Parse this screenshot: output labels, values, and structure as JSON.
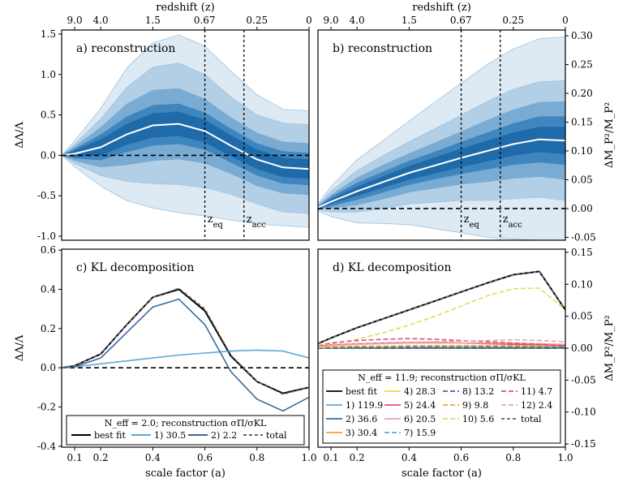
{
  "top_axis": {
    "label": "redshift (z)",
    "ticks": [
      "9.0",
      "4.0",
      "1.5",
      "0.67",
      "0.25",
      "0"
    ]
  },
  "bottom_axis": {
    "label": "scale factor (a)",
    "ticks": [
      "0.1",
      "0.2",
      "0.4",
      "0.6",
      "0.8",
      "1.0"
    ]
  },
  "chart_data": [
    {
      "id": "a",
      "type": "area",
      "title": "a) reconstruction",
      "ylabel": "ΔΛ/Λ",
      "xlim": [
        0.05,
        1.0
      ],
      "ylim": [
        -1.05,
        1.55
      ],
      "yticks": [
        "-1.0",
        "-0.5",
        "0.0",
        "0.5",
        "1.0",
        "1.5"
      ],
      "x": [
        0.05,
        0.1,
        0.2,
        0.3,
        0.4,
        0.5,
        0.6,
        0.7,
        0.8,
        0.9,
        1.0
      ],
      "median": [
        0,
        0.02,
        0.1,
        0.26,
        0.37,
        0.39,
        0.3,
        0.12,
        -0.05,
        -0.15,
        -0.17
      ],
      "band_half_widths": [
        [
          0,
          0.04,
          0.1,
          0.13,
          0.15,
          0.15,
          0.14,
          0.13,
          0.12,
          0.12,
          0.12
        ],
        [
          0,
          0.06,
          0.16,
          0.22,
          0.25,
          0.25,
          0.23,
          0.21,
          0.2,
          0.2,
          0.2
        ],
        [
          0,
          0.09,
          0.25,
          0.38,
          0.44,
          0.44,
          0.4,
          0.35,
          0.33,
          0.32,
          0.32
        ],
        [
          0,
          0.12,
          0.35,
          0.58,
          0.72,
          0.75,
          0.7,
          0.6,
          0.55,
          0.55,
          0.55
        ],
        [
          0,
          0.16,
          0.48,
          0.82,
          1.02,
          1.1,
          1.05,
          0.92,
          0.8,
          0.72,
          0.72
        ]
      ],
      "annotations": [
        {
          "label": "z_eq",
          "a": 0.6
        },
        {
          "label": "z_acc",
          "a": 0.75
        }
      ]
    },
    {
      "id": "b",
      "type": "area",
      "title": "b) reconstruction",
      "ylabel": "ΔM_P²/M_P²",
      "xlim": [
        0.05,
        1.0
      ],
      "ylim": [
        -0.055,
        0.31
      ],
      "yticks": [
        "-0.05",
        "0.00",
        "0.05",
        "0.10",
        "0.15",
        "0.20",
        "0.25",
        "0.30"
      ],
      "x": [
        0.05,
        0.1,
        0.2,
        0.3,
        0.4,
        0.5,
        0.6,
        0.7,
        0.8,
        0.9,
        1.0
      ],
      "median": [
        0.002,
        0.012,
        0.03,
        0.046,
        0.062,
        0.075,
        0.088,
        0.1,
        0.112,
        0.12,
        0.118
      ],
      "band_half_widths": [
        [
          0.001,
          0.004,
          0.008,
          0.01,
          0.012,
          0.014,
          0.016,
          0.018,
          0.02,
          0.022,
          0.024
        ],
        [
          0.002,
          0.008,
          0.015,
          0.018,
          0.021,
          0.024,
          0.028,
          0.032,
          0.036,
          0.04,
          0.042
        ],
        [
          0.003,
          0.012,
          0.024,
          0.03,
          0.034,
          0.04,
          0.046,
          0.054,
          0.06,
          0.065,
          0.068
        ],
        [
          0.004,
          0.018,
          0.036,
          0.046,
          0.054,
          0.064,
          0.074,
          0.086,
          0.095,
          0.1,
          0.104
        ],
        [
          0.006,
          0.026,
          0.055,
          0.072,
          0.09,
          0.11,
          0.13,
          0.15,
          0.165,
          0.175,
          0.18
        ]
      ],
      "annotations": [
        {
          "label": "z_eq",
          "a": 0.6
        },
        {
          "label": "z_acc",
          "a": 0.75
        }
      ]
    },
    {
      "id": "c",
      "type": "line",
      "title": "c) KL decomposition",
      "ylabel": "ΔΛ/Λ",
      "xlim": [
        0.05,
        1.0
      ],
      "ylim": [
        -0.405,
        0.605
      ],
      "yticks": [
        "-0.4",
        "-0.2",
        "0.0",
        "0.2",
        "0.4",
        "0.6"
      ],
      "x": [
        0.05,
        0.1,
        0.2,
        0.3,
        0.4,
        0.5,
        0.6,
        0.7,
        0.8,
        0.9,
        1.0
      ],
      "legend_title": "N_eff = 2.0; reconstruction σΠ/σKL",
      "series": [
        {
          "name": "best fit",
          "color": "#000000",
          "dash": "",
          "values": [
            0,
            0.01,
            0.07,
            0.22,
            0.36,
            0.4,
            0.29,
            0.06,
            -0.07,
            -0.13,
            -0.1
          ]
        },
        {
          "name": "1) 30.5",
          "color": "#5fa8dc",
          "dash": "",
          "values": [
            0,
            0.005,
            0.02,
            0.035,
            0.05,
            0.065,
            0.075,
            0.085,
            0.09,
            0.085,
            0.05
          ]
        },
        {
          "name": "2) 2.2",
          "color": "#3a6a9c",
          "dash": "",
          "values": [
            0,
            0.005,
            0.05,
            0.18,
            0.31,
            0.35,
            0.22,
            -0.02,
            -0.16,
            -0.22,
            -0.15
          ]
        },
        {
          "name": "total",
          "color": "#666666",
          "dash": "4,3",
          "values": [
            0,
            0.01,
            0.07,
            0.22,
            0.36,
            0.405,
            0.3,
            0.065,
            -0.07,
            -0.135,
            -0.1
          ]
        }
      ]
    },
    {
      "id": "d",
      "type": "line",
      "title": "d) KL decomposition",
      "ylabel": "ΔM_P²/M_P²",
      "xlim": [
        0.05,
        1.0
      ],
      "ylim": [
        -0.155,
        0.155
      ],
      "yticks": [
        "-0.15",
        "-0.10",
        "-0.05",
        "0.00",
        "0.05",
        "0.10",
        "0.15"
      ],
      "x": [
        0.05,
        0.1,
        0.2,
        0.3,
        0.4,
        0.5,
        0.6,
        0.7,
        0.8,
        0.9,
        1.0
      ],
      "legend_title": "N_eff = 11.9; reconstruction σΠ/σKL",
      "series": [
        {
          "name": "best fit",
          "color": "#000000",
          "dash": "",
          "values": [
            0.007,
            0.016,
            0.032,
            0.046,
            0.06,
            0.074,
            0.088,
            0.102,
            0.115,
            0.12,
            0.06
          ]
        },
        {
          "name": "1) 119.9",
          "color": "#5fa8dc",
          "dash": "",
          "values": [
            0.001,
            0.001,
            0.001,
            0.001,
            0.001,
            0.001,
            0.001,
            0.001,
            0.001,
            0.001,
            0.001
          ]
        },
        {
          "name": "2) 36.6",
          "color": "#3a6a9c",
          "dash": "",
          "values": [
            0,
            0,
            0,
            0,
            0,
            0,
            0,
            0,
            0,
            0,
            0
          ]
        },
        {
          "name": "3) 30.4",
          "color": "#f0a030",
          "dash": "",
          "values": [
            0.001,
            0.001,
            0.002,
            0.002,
            0.002,
            0.002,
            0.002,
            0.002,
            0.002,
            0.002,
            0.002
          ]
        },
        {
          "name": "4) 28.3",
          "color": "#e8d85a",
          "dash": "",
          "values": [
            0.001,
            0.001,
            0.002,
            0.002,
            0.002,
            0.003,
            0.003,
            0.003,
            0.003,
            0.003,
            0.003
          ]
        },
        {
          "name": "5) 24.4",
          "color": "#e0506e",
          "dash": "",
          "values": [
            0.003,
            0.005,
            0.007,
            0.008,
            0.009,
            0.009,
            0.008,
            0.007,
            0.006,
            0.005,
            0.004
          ]
        },
        {
          "name": "6) 20.5",
          "color": "#e6a4b6",
          "dash": "",
          "values": [
            0.002,
            0.004,
            0.006,
            0.007,
            0.008,
            0.008,
            0.008,
            0.008,
            0.008,
            0.007,
            0.006
          ]
        },
        {
          "name": "7) 15.9",
          "color": "#5fa8dc",
          "dash": "6,3",
          "values": [
            0,
            0.001,
            0.001,
            0.001,
            0.002,
            0.002,
            0.002,
            0.002,
            0.002,
            0.002,
            0.002
          ]
        },
        {
          "name": "8) 13.2",
          "color": "#3a6a9c",
          "dash": "6,3",
          "values": [
            0,
            0,
            0.001,
            0.001,
            0.001,
            0.001,
            0.001,
            0.001,
            0.001,
            0.001,
            0.001
          ]
        },
        {
          "name": "9) 9.8",
          "color": "#f0a030",
          "dash": "6,3",
          "values": [
            0.001,
            0.002,
            0.003,
            0.003,
            0.004,
            0.004,
            0.004,
            0.004,
            0.004,
            0.004,
            0.004
          ]
        },
        {
          "name": "10) 5.6",
          "color": "#e8d85a",
          "dash": "6,3",
          "values": [
            0.002,
            0.006,
            0.014,
            0.024,
            0.036,
            0.05,
            0.066,
            0.082,
            0.093,
            0.094,
            0.06
          ]
        },
        {
          "name": "11) 4.7",
          "color": "#e0506e",
          "dash": "6,3",
          "values": [
            0.004,
            0.008,
            0.012,
            0.014,
            0.015,
            0.014,
            0.012,
            0.01,
            0.008,
            0.006,
            0.004
          ]
        },
        {
          "name": "12) 2.4",
          "color": "#e6a4b6",
          "dash": "6,3",
          "values": [
            0.003,
            0.005,
            0.007,
            0.008,
            0.009,
            0.01,
            0.011,
            0.012,
            0.013,
            0.012,
            0.01
          ]
        },
        {
          "name": "total",
          "color": "#666666",
          "dash": "4,3",
          "values": [
            0.007,
            0.016,
            0.032,
            0.046,
            0.06,
            0.074,
            0.088,
            0.102,
            0.115,
            0.12,
            0.06
          ]
        }
      ]
    }
  ]
}
